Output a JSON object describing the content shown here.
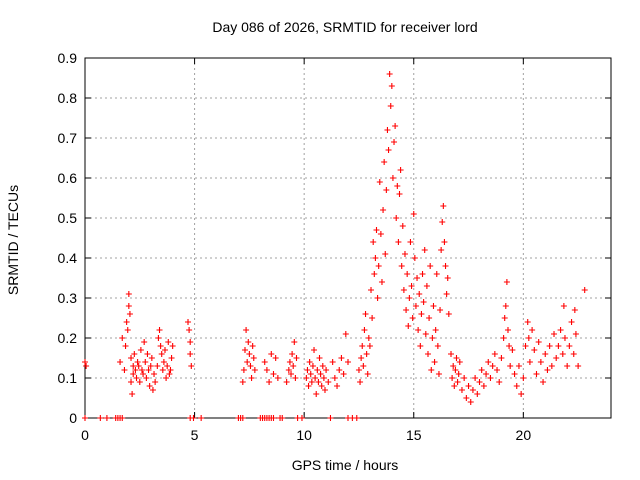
{
  "chart_data": {
    "type": "scatter",
    "title": "Day 086 of 2026, SRMTID for receiver lord",
    "xlabel": "GPS time / hours",
    "ylabel": "SRMTID / TECUs",
    "xlim": [
      0,
      24
    ],
    "ylim": [
      0,
      0.9
    ],
    "x_ticks": [
      0,
      5,
      10,
      15,
      20
    ],
    "x_tick_labels": [
      "0",
      "5",
      "10",
      "15",
      "20"
    ],
    "y_ticks": [
      0,
      0.1,
      0.2,
      0.3,
      0.4,
      0.5,
      0.6,
      0.7,
      0.8,
      0.9
    ],
    "y_tick_labels": [
      "0",
      "0.1",
      "0.2",
      "0.3",
      "0.4",
      "0.5",
      "0.6",
      "0.7",
      "0.8",
      "0.9"
    ],
    "grid": true,
    "marker": "+",
    "color": "#ff0000",
    "series": [
      {
        "name": "SRMTID",
        "points": [
          [
            0.0,
            0.14
          ],
          [
            0.05,
            0.13
          ],
          [
            0.0,
            0.0
          ],
          [
            0.7,
            0.0
          ],
          [
            1.0,
            0.0
          ],
          [
            1.4,
            0.0
          ],
          [
            1.5,
            0.0
          ],
          [
            1.6,
            0.0
          ],
          [
            1.7,
            0.0
          ],
          [
            1.6,
            0.14
          ],
          [
            1.7,
            0.2
          ],
          [
            1.8,
            0.12
          ],
          [
            1.85,
            0.18
          ],
          [
            1.9,
            0.24
          ],
          [
            1.95,
            0.22
          ],
          [
            2.0,
            0.28
          ],
          [
            2.0,
            0.31
          ],
          [
            2.05,
            0.26
          ],
          [
            2.1,
            0.15
          ],
          [
            2.1,
            0.09
          ],
          [
            2.15,
            0.06
          ],
          [
            2.2,
            0.13
          ],
          [
            2.2,
            0.11
          ],
          [
            2.25,
            0.16
          ],
          [
            2.3,
            0.12
          ],
          [
            2.35,
            0.1
          ],
          [
            2.4,
            0.14
          ],
          [
            2.45,
            0.13
          ],
          [
            2.5,
            0.09
          ],
          [
            2.55,
            0.17
          ],
          [
            2.6,
            0.12
          ],
          [
            2.65,
            0.11
          ],
          [
            2.7,
            0.19
          ],
          [
            2.75,
            0.14
          ],
          [
            2.8,
            0.1
          ],
          [
            2.85,
            0.16
          ],
          [
            2.9,
            0.12
          ],
          [
            2.95,
            0.08
          ],
          [
            3.0,
            0.13
          ],
          [
            3.05,
            0.15
          ],
          [
            3.1,
            0.07
          ],
          [
            3.15,
            0.11
          ],
          [
            3.2,
            0.09
          ],
          [
            3.3,
            0.13
          ],
          [
            3.35,
            0.2
          ],
          [
            3.4,
            0.22
          ],
          [
            3.45,
            0.18
          ],
          [
            3.5,
            0.16
          ],
          [
            3.55,
            0.12
          ],
          [
            3.6,
            0.14
          ],
          [
            3.65,
            0.17
          ],
          [
            3.7,
            0.1
          ],
          [
            3.75,
            0.13
          ],
          [
            3.8,
            0.19
          ],
          [
            3.85,
            0.11
          ],
          [
            3.9,
            0.12
          ],
          [
            3.95,
            0.15
          ],
          [
            4.0,
            0.18
          ],
          [
            4.7,
            0.24
          ],
          [
            4.75,
            0.22
          ],
          [
            4.8,
            0.19
          ],
          [
            4.8,
            0.16
          ],
          [
            4.85,
            0.13
          ],
          [
            4.8,
            0.0
          ],
          [
            4.95,
            0.0
          ],
          [
            5.3,
            0.0
          ],
          [
            7.0,
            0.0
          ],
          [
            7.1,
            0.0
          ],
          [
            7.2,
            0.0
          ],
          [
            7.2,
            0.09
          ],
          [
            7.25,
            0.12
          ],
          [
            7.3,
            0.17
          ],
          [
            7.35,
            0.22
          ],
          [
            7.4,
            0.14
          ],
          [
            7.45,
            0.19
          ],
          [
            7.5,
            0.16
          ],
          [
            7.55,
            0.13
          ],
          [
            7.6,
            0.1
          ],
          [
            7.65,
            0.18
          ],
          [
            7.7,
            0.15
          ],
          [
            7.75,
            0.12
          ],
          [
            8.0,
            0.0
          ],
          [
            8.1,
            0.0
          ],
          [
            8.2,
            0.0
          ],
          [
            8.3,
            0.0
          ],
          [
            8.4,
            0.0
          ],
          [
            8.5,
            0.0
          ],
          [
            8.6,
            0.0
          ],
          [
            8.2,
            0.14
          ],
          [
            8.3,
            0.12
          ],
          [
            8.4,
            0.09
          ],
          [
            8.5,
            0.16
          ],
          [
            8.6,
            0.11
          ],
          [
            8.7,
            0.15
          ],
          [
            8.8,
            0.1
          ],
          [
            8.9,
            0.0
          ],
          [
            9.0,
            0.0
          ],
          [
            9.2,
            0.09
          ],
          [
            9.3,
            0.12
          ],
          [
            9.35,
            0.14
          ],
          [
            9.4,
            0.11
          ],
          [
            9.45,
            0.16
          ],
          [
            9.5,
            0.13
          ],
          [
            9.55,
            0.19
          ],
          [
            9.6,
            0.1
          ],
          [
            9.65,
            0.15
          ],
          [
            9.7,
            0.0
          ],
          [
            9.9,
            0.0
          ],
          [
            10.1,
            0.1
          ],
          [
            10.15,
            0.12
          ],
          [
            10.2,
            0.08
          ],
          [
            10.25,
            0.14
          ],
          [
            10.3,
            0.11
          ],
          [
            10.35,
            0.09
          ],
          [
            10.4,
            0.13
          ],
          [
            10.45,
            0.17
          ],
          [
            10.5,
            0.1
          ],
          [
            10.55,
            0.06
          ],
          [
            10.6,
            0.12
          ],
          [
            10.65,
            0.09
          ],
          [
            10.7,
            0.15
          ],
          [
            10.75,
            0.11
          ],
          [
            10.8,
            0.08
          ],
          [
            10.85,
            0.13
          ],
          [
            10.9,
            0.1
          ],
          [
            10.95,
            0.07
          ],
          [
            11.0,
            0.12
          ],
          [
            11.1,
            0.09
          ],
          [
            11.2,
            0.0
          ],
          [
            11.3,
            0.14
          ],
          [
            11.4,
            0.1
          ],
          [
            11.5,
            0.08
          ],
          [
            11.6,
            0.12
          ],
          [
            11.7,
            0.15
          ],
          [
            11.8,
            0.11
          ],
          [
            11.9,
            0.21
          ],
          [
            12.0,
            0.14
          ],
          [
            12.0,
            0.0
          ],
          [
            12.2,
            0.0
          ],
          [
            12.4,
            0.0
          ],
          [
            12.5,
            0.12
          ],
          [
            12.55,
            0.09
          ],
          [
            12.6,
            0.15
          ],
          [
            12.65,
            0.18
          ],
          [
            12.7,
            0.13
          ],
          [
            12.75,
            0.22
          ],
          [
            12.8,
            0.26
          ],
          [
            12.85,
            0.16
          ],
          [
            12.9,
            0.11
          ],
          [
            12.95,
            0.2
          ],
          [
            13.0,
            0.18
          ],
          [
            13.05,
            0.32
          ],
          [
            13.1,
            0.25
          ],
          [
            13.15,
            0.44
          ],
          [
            13.2,
            0.36
          ],
          [
            13.25,
            0.4
          ],
          [
            13.3,
            0.47
          ],
          [
            13.35,
            0.3
          ],
          [
            13.4,
            0.38
          ],
          [
            13.45,
            0.59
          ],
          [
            13.5,
            0.46
          ],
          [
            13.55,
            0.34
          ],
          [
            13.6,
            0.52
          ],
          [
            13.65,
            0.64
          ],
          [
            13.7,
            0.41
          ],
          [
            13.75,
            0.57
          ],
          [
            13.8,
            0.72
          ],
          [
            13.85,
            0.67
          ],
          [
            13.9,
            0.86
          ],
          [
            13.95,
            0.78
          ],
          [
            14.0,
            0.83
          ],
          [
            14.05,
            0.6
          ],
          [
            14.1,
            0.69
          ],
          [
            14.15,
            0.73
          ],
          [
            14.2,
            0.5
          ],
          [
            14.25,
            0.58
          ],
          [
            14.3,
            0.44
          ],
          [
            14.35,
            0.56
          ],
          [
            14.4,
            0.62
          ],
          [
            14.45,
            0.38
          ],
          [
            14.5,
            0.48
          ],
          [
            14.55,
            0.32
          ],
          [
            14.6,
            0.41
          ],
          [
            14.65,
            0.27
          ],
          [
            14.7,
            0.36
          ],
          [
            14.75,
            0.23
          ],
          [
            14.8,
            0.3
          ],
          [
            14.85,
            0.44
          ],
          [
            14.9,
            0.33
          ],
          [
            14.95,
            0.25
          ],
          [
            15.0,
            0.51
          ],
          [
            15.05,
            0.4
          ],
          [
            15.1,
            0.28
          ],
          [
            15.15,
            0.35
          ],
          [
            15.2,
            0.22
          ],
          [
            15.25,
            0.31
          ],
          [
            15.3,
            0.18
          ],
          [
            15.35,
            0.26
          ],
          [
            15.4,
            0.36
          ],
          [
            15.45,
            0.29
          ],
          [
            15.5,
            0.42
          ],
          [
            15.55,
            0.21
          ],
          [
            15.6,
            0.33
          ],
          [
            15.65,
            0.16
          ],
          [
            15.7,
            0.25
          ],
          [
            15.75,
            0.38
          ],
          [
            15.8,
            0.12
          ],
          [
            15.85,
            0.2
          ],
          [
            15.9,
            0.28
          ],
          [
            15.95,
            0.14
          ],
          [
            16.0,
            0.22
          ],
          [
            16.05,
            0.36
          ],
          [
            16.1,
            0.18
          ],
          [
            16.15,
            0.11
          ],
          [
            16.2,
            0.27
          ],
          [
            16.25,
            0.42
          ],
          [
            16.3,
            0.49
          ],
          [
            16.35,
            0.53
          ],
          [
            16.4,
            0.44
          ],
          [
            16.45,
            0.38
          ],
          [
            16.5,
            0.31
          ],
          [
            16.55,
            0.35
          ],
          [
            16.6,
            0.26
          ],
          [
            16.7,
            0.16
          ],
          [
            16.75,
            0.1
          ],
          [
            16.8,
            0.13
          ],
          [
            16.85,
            0.08
          ],
          [
            16.9,
            0.12
          ],
          [
            16.95,
            0.15
          ],
          [
            17.0,
            0.09
          ],
          [
            17.05,
            0.11
          ],
          [
            17.1,
            0.14
          ],
          [
            17.2,
            0.07
          ],
          [
            17.3,
            0.1
          ],
          [
            17.4,
            0.05
          ],
          [
            17.5,
            0.08
          ],
          [
            17.6,
            0.04
          ],
          [
            17.7,
            0.07
          ],
          [
            17.8,
            0.1
          ],
          [
            17.9,
            0.06
          ],
          [
            18.0,
            0.09
          ],
          [
            18.1,
            0.12
          ],
          [
            18.2,
            0.08
          ],
          [
            18.3,
            0.11
          ],
          [
            18.4,
            0.14
          ],
          [
            18.5,
            0.1
          ],
          [
            18.6,
            0.13
          ],
          [
            18.7,
            0.16
          ],
          [
            18.8,
            0.12
          ],
          [
            18.9,
            0.09
          ],
          [
            19.0,
            0.15
          ],
          [
            19.1,
            0.2
          ],
          [
            19.15,
            0.25
          ],
          [
            19.2,
            0.28
          ],
          [
            19.25,
            0.34
          ],
          [
            19.3,
            0.22
          ],
          [
            19.35,
            0.18
          ],
          [
            19.4,
            0.13
          ],
          [
            19.5,
            0.17
          ],
          [
            19.6,
            0.11
          ],
          [
            19.7,
            0.08
          ],
          [
            19.8,
            0.13
          ],
          [
            19.9,
            0.06
          ],
          [
            20.0,
            0.1
          ],
          [
            20.1,
            0.18
          ],
          [
            20.2,
            0.24
          ],
          [
            20.25,
            0.2
          ],
          [
            20.3,
            0.14
          ],
          [
            20.4,
            0.22
          ],
          [
            20.5,
            0.17
          ],
          [
            20.6,
            0.11
          ],
          [
            20.7,
            0.19
          ],
          [
            20.8,
            0.14
          ],
          [
            20.9,
            0.09
          ],
          [
            21.0,
            0.16
          ],
          [
            21.1,
            0.12
          ],
          [
            21.2,
            0.18
          ],
          [
            21.3,
            0.13
          ],
          [
            21.4,
            0.21
          ],
          [
            21.5,
            0.15
          ],
          [
            21.6,
            0.18
          ],
          [
            21.7,
            0.22
          ],
          [
            21.8,
            0.16
          ],
          [
            21.85,
            0.28
          ],
          [
            21.9,
            0.2
          ],
          [
            22.0,
            0.13
          ],
          [
            22.1,
            0.18
          ],
          [
            22.2,
            0.24
          ],
          [
            22.3,
            0.16
          ],
          [
            22.35,
            0.27
          ],
          [
            22.4,
            0.21
          ],
          [
            22.5,
            0.13
          ],
          [
            22.8,
            0.32
          ]
        ]
      }
    ]
  }
}
